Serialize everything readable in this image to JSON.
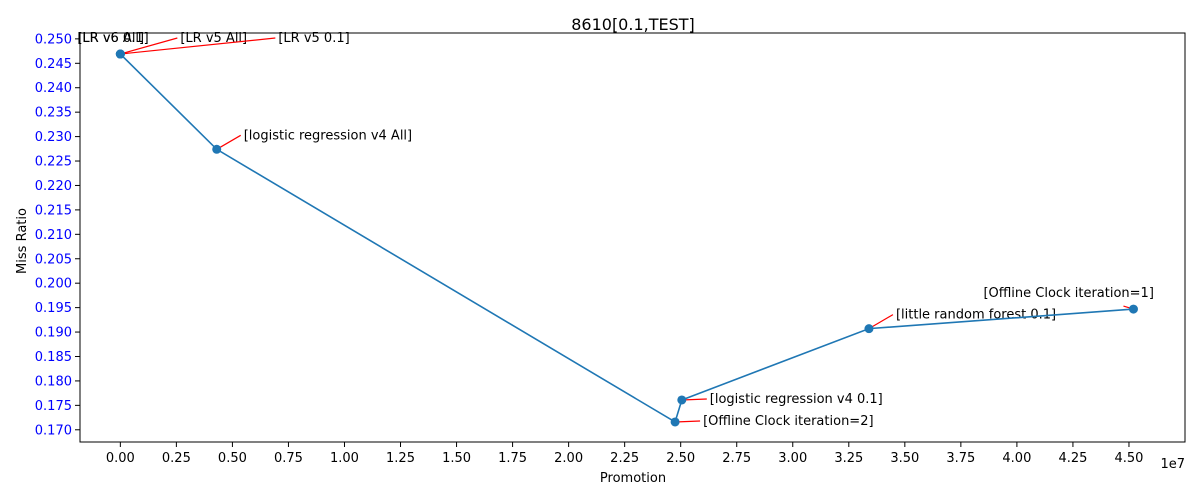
{
  "chart_data": {
    "type": "line",
    "title": "8610[0.1,TEST]",
    "xlabel": "Promotion",
    "ylabel": "Miss Ratio",
    "x_offset_label": "1e7",
    "xlim": [
      -1800000,
      47500000
    ],
    "ylim": [
      0.1675,
      0.2512
    ],
    "x_ticks": [
      "0.00",
      "0.25",
      "0.50",
      "0.75",
      "1.00",
      "1.25",
      "1.50",
      "1.75",
      "2.00",
      "2.25",
      "2.50",
      "2.75",
      "3.00",
      "3.25",
      "3.50",
      "3.75",
      "4.00",
      "4.25",
      "4.50"
    ],
    "y_ticks": [
      "0.170",
      "0.175",
      "0.180",
      "0.185",
      "0.190",
      "0.195",
      "0.200",
      "0.205",
      "0.210",
      "0.215",
      "0.220",
      "0.225",
      "0.230",
      "0.235",
      "0.240",
      "0.245",
      "0.250"
    ],
    "grid": false,
    "line_color": "#1f77b4",
    "annotation_color": "#ff0000",
    "ytick_color": "#0000ff",
    "points": [
      {
        "x": 0,
        "y": 0.2469
      },
      {
        "x": 0,
        "y": 0.2469
      },
      {
        "x": 0,
        "y": 0.2469
      },
      {
        "x": 0,
        "y": 0.2469
      },
      {
        "x": 4300000,
        "y": 0.2274
      },
      {
        "x": 24750000,
        "y": 0.1716
      },
      {
        "x": 25050000,
        "y": 0.1761
      },
      {
        "x": 33400000,
        "y": 0.1907
      },
      {
        "x": 45200000,
        "y": 0.1947
      }
    ],
    "annotations": [
      {
        "text": "[LR v6 0.1]",
        "point": 0
      },
      {
        "text": "[LR v6 All]",
        "point": 1
      },
      {
        "text": "[LR v5 All]",
        "point": 2
      },
      {
        "text": "[LR v5 0.1]",
        "point": 3
      },
      {
        "text": "[logistic regression v4 All]",
        "point": 4
      },
      {
        "text": "[Offline Clock iteration=2]",
        "point": 5
      },
      {
        "text": "[logistic regression v4 0.1]",
        "point": 6
      },
      {
        "text": "[little random forest 0.1]",
        "point": 7
      },
      {
        "text": "[Offline Clock iteration=1]",
        "point": 8
      }
    ]
  }
}
